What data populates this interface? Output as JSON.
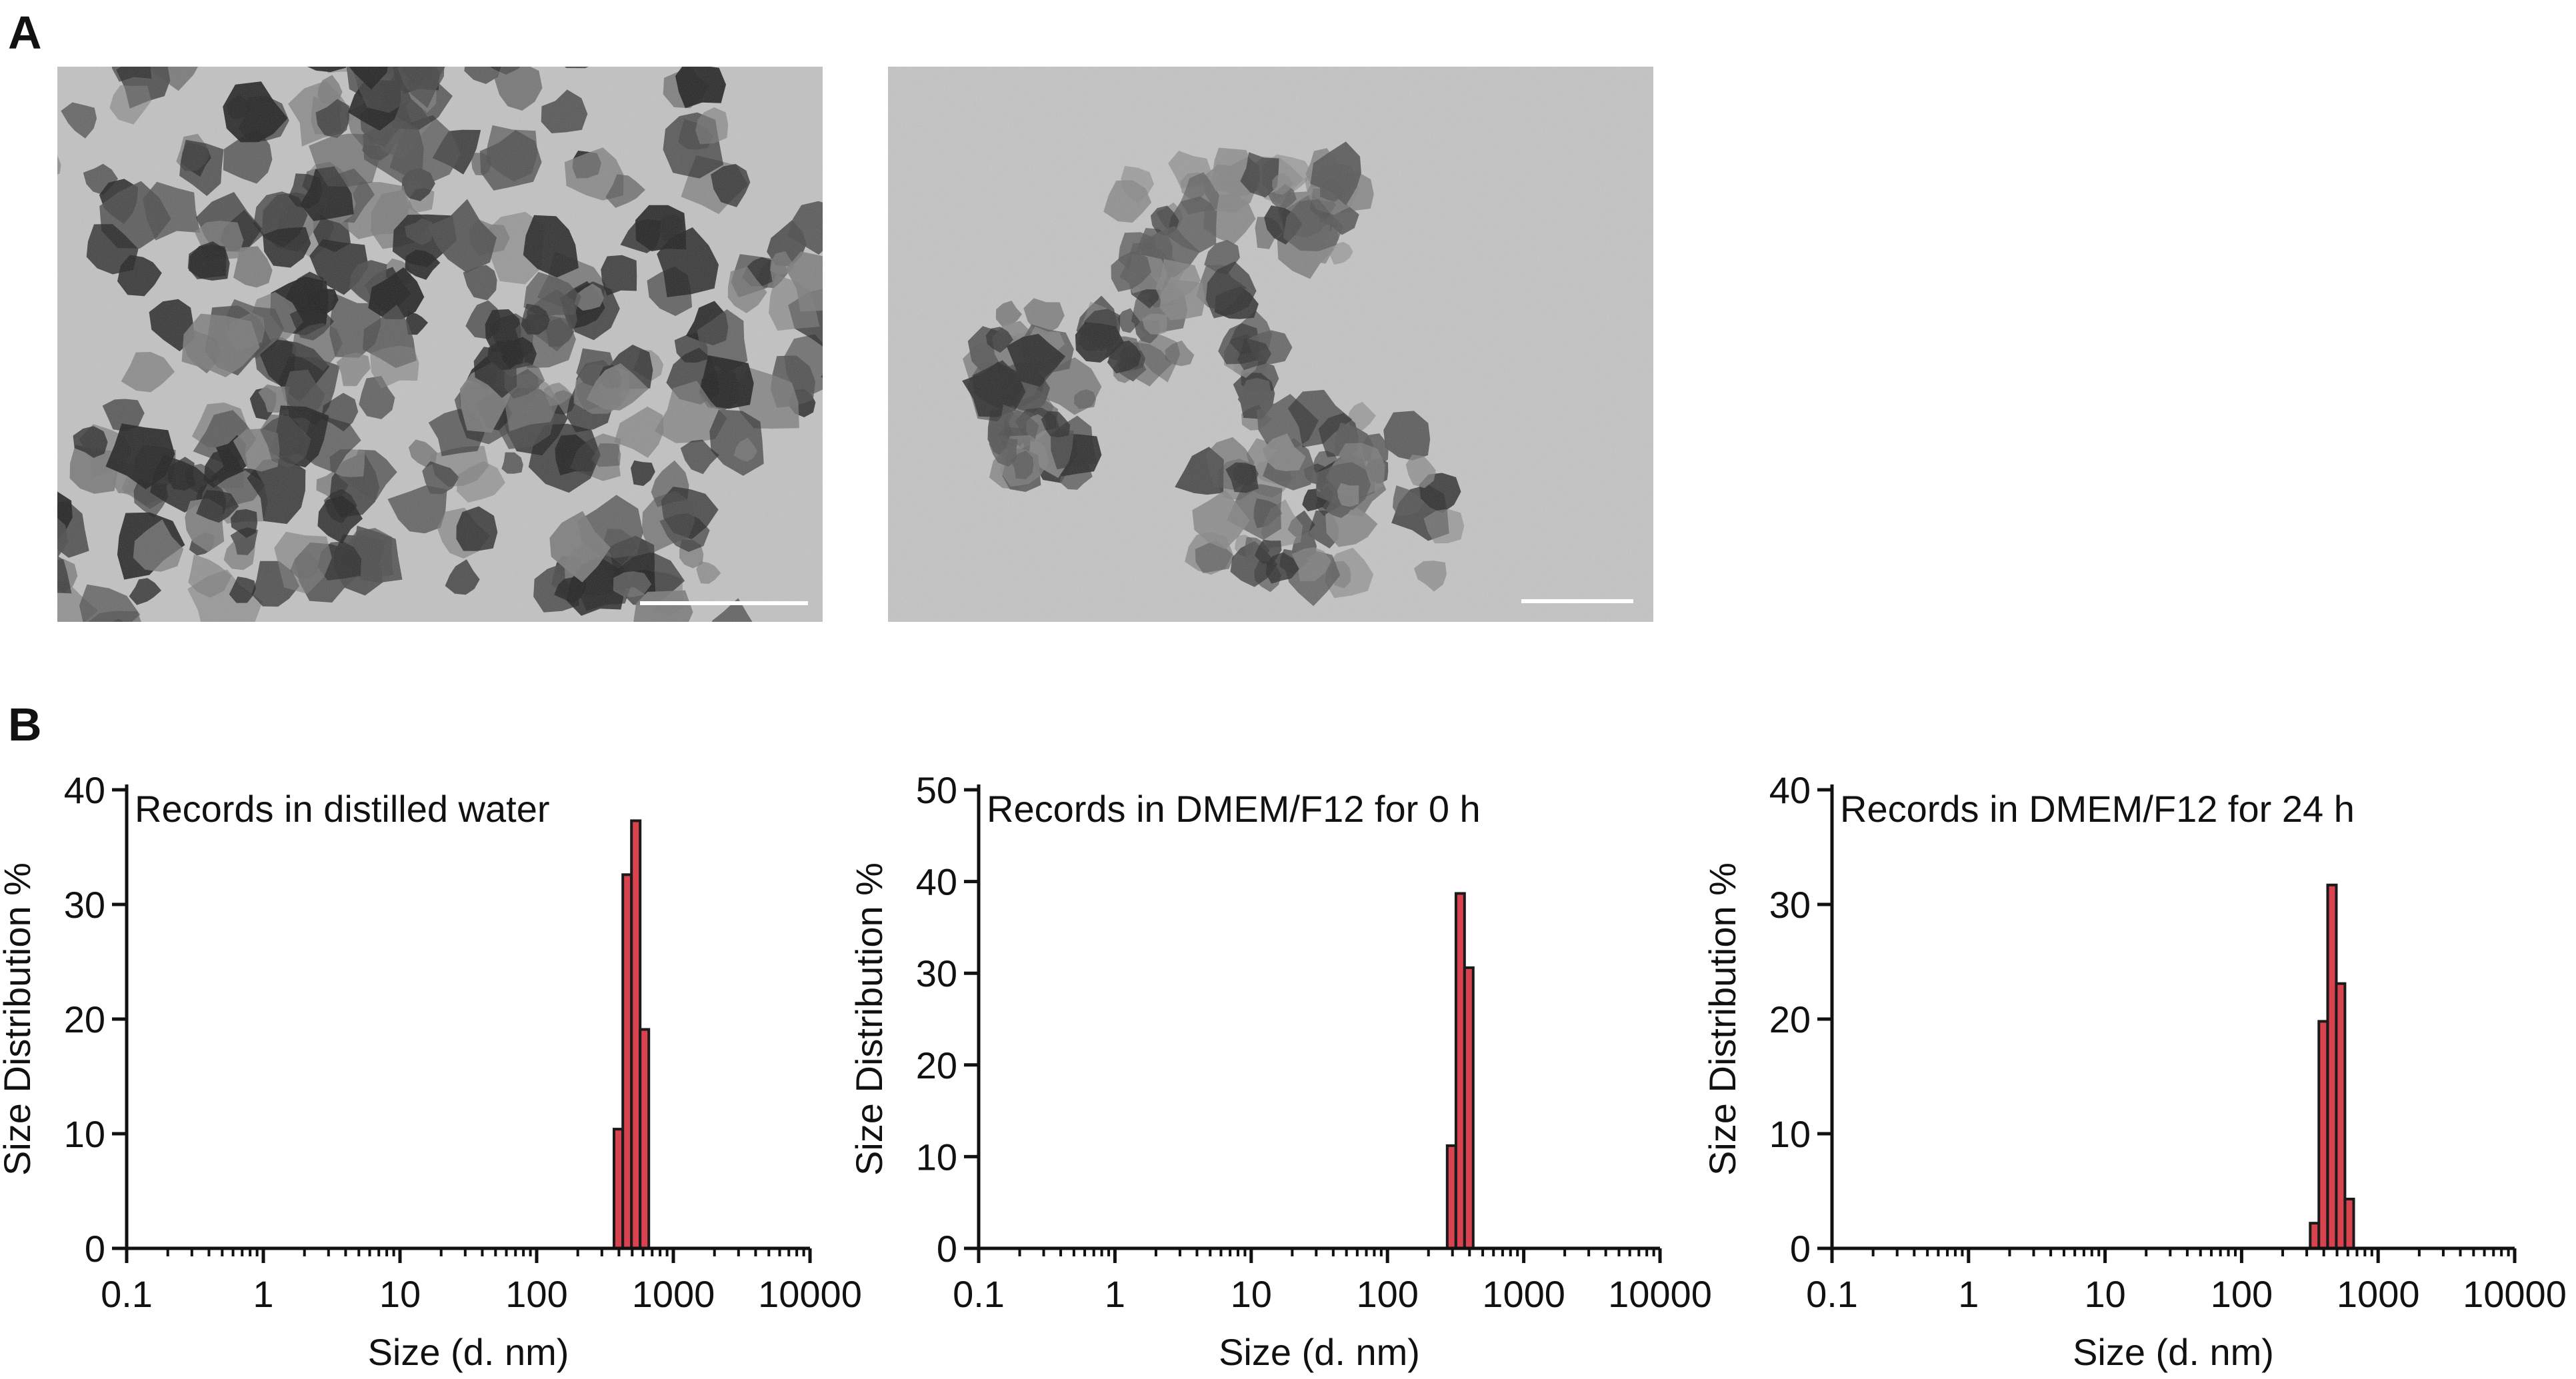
{
  "panels": {
    "a_label": "A",
    "b_label": "B"
  },
  "tem_images": [
    {
      "name": "tem-image-left",
      "description_icon": "micrograph-icon"
    },
    {
      "name": "tem-image-right",
      "description_icon": "micrograph-icon"
    }
  ],
  "colors": {
    "bar_fill": "#d9434f",
    "bar_stroke": "#1a1a1a",
    "axis": "#111111",
    "tem_background": "#bdbdbd",
    "tem_particle_dark": "#2a2a2a",
    "tem_particle_mid": "#6e6e6e",
    "scale_bar": "#ffffff"
  },
  "chart_data": [
    {
      "type": "bar",
      "title": "Records in distilled water",
      "xlabel": "Size (d. nm)",
      "ylabel": "Size Distribution %",
      "xscale": "log",
      "xlim": [
        0.1,
        10000
      ],
      "ylim": [
        0,
        40
      ],
      "xticks": [
        "0.1",
        "1",
        "10",
        "100",
        "1000",
        "10000"
      ],
      "yticks": [
        "0",
        "10",
        "20",
        "30",
        "40"
      ],
      "x": [
        396,
        459,
        531,
        615
      ],
      "values": [
        10.4,
        32.6,
        37.3,
        19.1
      ]
    },
    {
      "type": "bar",
      "title": "Records in DMEM/F12 for 0 h",
      "xlabel": "Size (d. nm)",
      "ylabel": "Size Distribution %",
      "xscale": "log",
      "xlim": [
        0.1,
        10000
      ],
      "ylim": [
        0,
        50
      ],
      "xticks": [
        "0.1",
        "1",
        "10",
        "100",
        "1000",
        "10000"
      ],
      "yticks": [
        "0",
        "10",
        "20",
        "30",
        "40",
        "50"
      ],
      "x": [
        295,
        342,
        396
      ],
      "values": [
        11.2,
        38.7,
        30.6
      ]
    },
    {
      "type": "bar",
      "title": "Records in DMEM/F12 for 24 h",
      "xlabel": "Size (d. nm)",
      "ylabel": "Size Distribution %",
      "xscale": "log",
      "xlim": [
        0.1,
        10000
      ],
      "ylim": [
        0,
        40
      ],
      "xticks": [
        "0.1",
        "1",
        "10",
        "100",
        "1000",
        "10000"
      ],
      "yticks": [
        "0",
        "10",
        "20",
        "30",
        "40"
      ],
      "x": [
        342,
        396,
        459,
        531,
        615
      ],
      "values": [
        2.2,
        19.8,
        31.7,
        23.1,
        4.3
      ]
    }
  ]
}
